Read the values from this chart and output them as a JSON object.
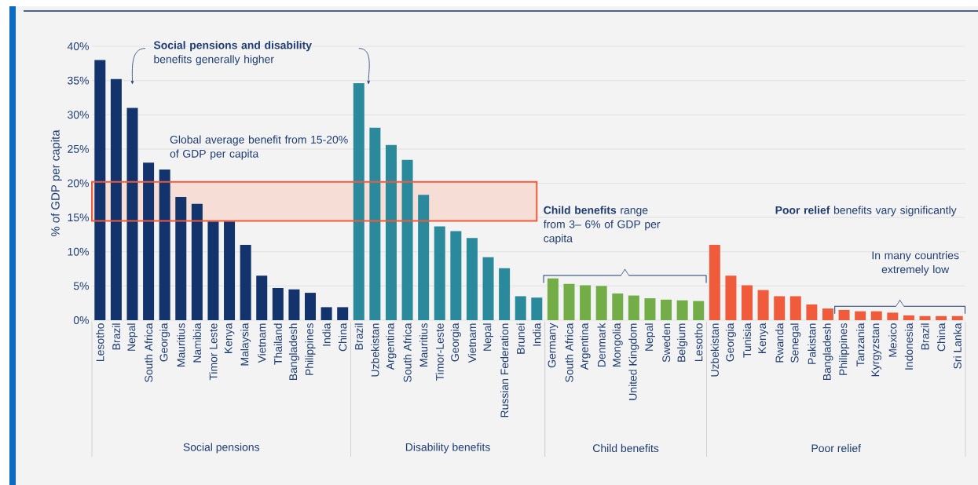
{
  "chart_data": {
    "type": "bar",
    "ylabel": "% of GDP per capita",
    "categories": [
      "Lesotho",
      "Brazil",
      "Nepal",
      "South Africa",
      "Georgia",
      "Mauritius",
      "Namibia",
      "Timor Leste",
      "Kenya",
      "Malaysia",
      "Vietnam",
      "Thailand",
      "Bangladesh",
      "Philippines",
      "India",
      "China",
      "Brazil",
      "Uzbekistan",
      "Argentina",
      "South Africa",
      "Mauritius",
      "Timor-Leste",
      "Georgia",
      "Vietnam",
      "Nepal",
      "Russian Federation",
      "Brunei",
      "India",
      "Germany",
      "South Africa",
      "Argentina",
      "Denmark",
      "Mongolia",
      "United Kingdom",
      "Nepal",
      "Sweden",
      "Belgium",
      "Lesotho",
      "Uzbekistan",
      "Georgia",
      "Tunisia",
      "Kenya",
      "Rwanda",
      "Senegal",
      "Pakistan",
      "Bangladesh",
      "Philippines",
      "Tanzania",
      "Kyrgyzstan",
      "Mexico",
      "Indonesia",
      "Brazil",
      "China",
      "Sri Lanka"
    ],
    "series": [
      {
        "color": "#12336b",
        "values": [
          38,
          35.2,
          31,
          23,
          22,
          18,
          17,
          14.4,
          14.4,
          11,
          6.5,
          4.7,
          4.5,
          4,
          1.9,
          1.9,
          null,
          null,
          null,
          null,
          null,
          null,
          null,
          null,
          null,
          null,
          null,
          null,
          null,
          null,
          null,
          null,
          null,
          null,
          null,
          null,
          null,
          null,
          null,
          null,
          null,
          null,
          null,
          null,
          null,
          null,
          null,
          null,
          null,
          null,
          null,
          null,
          null,
          null
        ]
      },
      {
        "color": "#2a8a9b",
        "values": [
          null,
          null,
          null,
          null,
          null,
          null,
          null,
          null,
          null,
          null,
          null,
          null,
          null,
          null,
          null,
          null,
          34.6,
          28.1,
          25.6,
          23.4,
          18.3,
          13.7,
          13,
          12,
          9.2,
          7.6,
          3.5,
          3.3,
          null,
          null,
          null,
          null,
          null,
          null,
          null,
          null,
          null,
          null,
          null,
          null,
          null,
          null,
          null,
          null,
          null,
          null,
          null,
          null,
          null,
          null,
          null,
          null,
          null,
          null
        ]
      },
      {
        "color": "#72ad47",
        "values": [
          null,
          null,
          null,
          null,
          null,
          null,
          null,
          null,
          null,
          null,
          null,
          null,
          null,
          null,
          null,
          null,
          null,
          null,
          null,
          null,
          null,
          null,
          null,
          null,
          null,
          null,
          null,
          null,
          6.1,
          5.3,
          5.1,
          5,
          3.9,
          3.6,
          3.2,
          3,
          2.9,
          2.8,
          null,
          null,
          null,
          null,
          null,
          null,
          null,
          null,
          null,
          null,
          null,
          null,
          null,
          null,
          null,
          null
        ]
      },
      {
        "color": "#f05b3b",
        "values": [
          null,
          null,
          null,
          null,
          null,
          null,
          null,
          null,
          null,
          null,
          null,
          null,
          null,
          null,
          null,
          null,
          null,
          null,
          null,
          null,
          null,
          null,
          null,
          null,
          null,
          null,
          null,
          null,
          null,
          null,
          null,
          null,
          null,
          null,
          null,
          null,
          null,
          null,
          11,
          6.5,
          5.1,
          4.4,
          3.5,
          3.5,
          2.3,
          1.7,
          1.5,
          1.3,
          1.3,
          1.1,
          0.7,
          0.6,
          0.6,
          0.6
        ]
      }
    ],
    "ylim": [
      0,
      40
    ],
    "yticks": [
      {
        "value": 0,
        "label": "0%"
      },
      {
        "value": 5,
        "label": "5%"
      },
      {
        "value": 10,
        "label": "10%"
      },
      {
        "value": 15,
        "label": "15%"
      },
      {
        "value": 20,
        "label": "20%"
      },
      {
        "value": 25,
        "label": "25%"
      },
      {
        "value": 30,
        "label": "30%"
      },
      {
        "value": 35,
        "label": "35%"
      },
      {
        "value": 40,
        "label": "40%"
      }
    ],
    "grid": "y",
    "bands": [
      {
        "axis": "y",
        "from": 14.5,
        "to": 20.2,
        "label": "Global average benefit from 15-20% of GDP per capita",
        "color": "#f6ddd5"
      }
    ],
    "annotations": [
      "**Social pensions and disability** benefits generally higher",
      "**Child benefits** range from 3– 6% of GDP per capita",
      "**Poor relief** benefits vary significantly",
      "In many countries extremely low",
      "Social pensions",
      "Disability benefits",
      "Child benefits",
      "Poor relief"
    ]
  }
}
